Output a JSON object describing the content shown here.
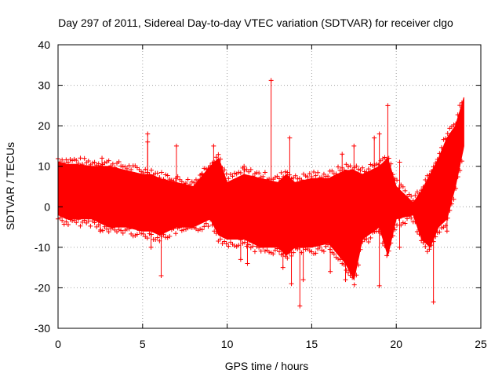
{
  "chart_data": {
    "type": "scatter",
    "title": "Day 297 of 2011, Sidereal Day-to-day VTEC variation (SDTVAR) for receiver clgo",
    "xlabel": "GPS time / hours",
    "ylabel": "SDTVAR / TECUs",
    "xlim": [
      0,
      25
    ],
    "ylim": [
      -30,
      40
    ],
    "x_ticks": [
      0,
      5,
      10,
      15,
      20,
      25
    ],
    "y_ticks": [
      -30,
      -20,
      -10,
      0,
      10,
      20,
      30,
      40
    ],
    "grid": true,
    "marker": "+",
    "series_color": "#ff0000",
    "envelope": {
      "x": [
        0,
        0.5,
        1,
        2,
        3,
        4,
        5,
        5.5,
        6,
        7,
        8,
        9,
        9.5,
        10,
        11,
        12,
        13,
        13.5,
        14,
        15,
        16,
        17,
        17.5,
        18,
        19,
        19.5,
        20,
        21,
        21.5,
        22,
        22.5,
        23,
        23.5,
        24
      ],
      "upper": [
        11,
        10.5,
        10.5,
        10,
        10,
        9,
        8,
        8,
        7,
        6,
        5,
        10,
        12,
        6,
        8,
        7,
        6,
        8,
        6,
        7,
        7,
        9,
        9,
        8,
        10,
        12,
        5,
        1,
        4,
        8,
        12,
        17,
        20,
        27
      ],
      "lower": [
        -2,
        -3,
        -3,
        -3,
        -5,
        -5,
        -6,
        -6,
        -7,
        -5,
        -5,
        -3,
        -7,
        -8,
        -8,
        -10,
        -10,
        -12,
        -10,
        -10,
        -9,
        -14,
        -18,
        -8,
        -5,
        -12,
        -3,
        -2,
        -8,
        -10,
        -5,
        -3,
        5,
        15
      ]
    },
    "outliers": [
      {
        "x": 12.6,
        "y": 31.2
      },
      {
        "x": 19.5,
        "y": 25
      },
      {
        "x": 5.3,
        "y": 18
      },
      {
        "x": 5.3,
        "y": 16
      },
      {
        "x": 7.0,
        "y": 15
      },
      {
        "x": 9.2,
        "y": 15
      },
      {
        "x": 17.5,
        "y": 15
      },
      {
        "x": 19.0,
        "y": 18
      },
      {
        "x": 13.7,
        "y": 17
      },
      {
        "x": 16.8,
        "y": 13
      },
      {
        "x": 2.6,
        "y": 12
      },
      {
        "x": 2.5,
        "y": -6
      },
      {
        "x": 2.8,
        "y": -3
      },
      {
        "x": 5.5,
        "y": -10
      },
      {
        "x": 6.1,
        "y": -17
      },
      {
        "x": 10.8,
        "y": -13
      },
      {
        "x": 11.2,
        "y": -14
      },
      {
        "x": 13.3,
        "y": -15
      },
      {
        "x": 13.8,
        "y": -19
      },
      {
        "x": 14.3,
        "y": -24.5
      },
      {
        "x": 14.5,
        "y": -18
      },
      {
        "x": 16.1,
        "y": -16
      },
      {
        "x": 17.0,
        "y": -18
      },
      {
        "x": 19.0,
        "y": -19.5
      },
      {
        "x": 20.2,
        "y": -10
      },
      {
        "x": 22.2,
        "y": -23.5
      },
      {
        "x": 22.6,
        "y": -4
      },
      {
        "x": 23.0,
        "y": -6
      },
      {
        "x": 18.7,
        "y": 17
      },
      {
        "x": 20.2,
        "y": 11
      },
      {
        "x": 11.0,
        "y": 10
      },
      {
        "x": 8.5,
        "y": 8
      }
    ]
  }
}
